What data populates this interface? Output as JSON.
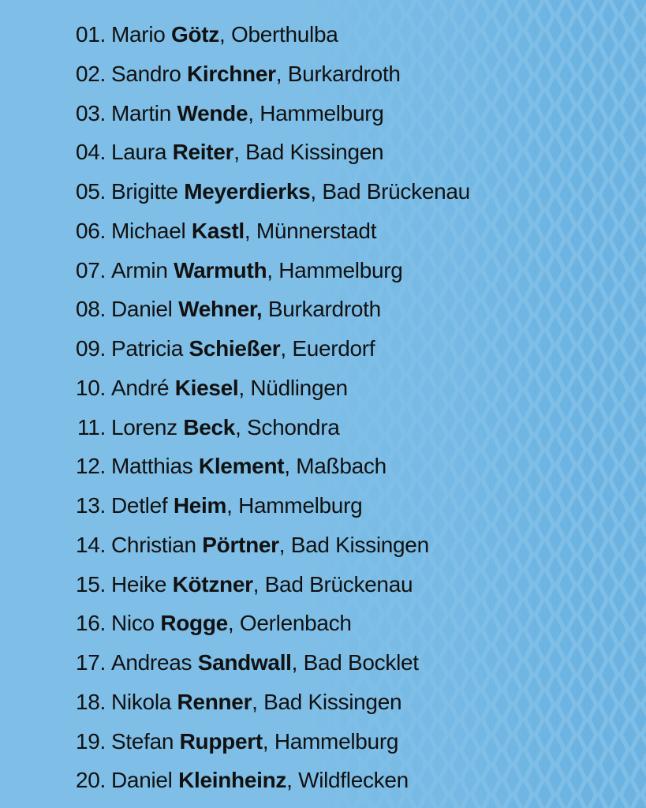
{
  "colors": {
    "background": "#7fbfe7",
    "pattern": "#6cb3e2",
    "text": "#111111"
  },
  "items": [
    {
      "number": "01.",
      "first": "Mario",
      "last": "Götz",
      "place": "Oberthulba"
    },
    {
      "number": "02.",
      "first": "Sandro",
      "last": "Kirchner",
      "place": "Burkardroth"
    },
    {
      "number": "03.",
      "first": "Martin",
      "last": "Wende",
      "place": "Hammelburg"
    },
    {
      "number": "04.",
      "first": "Laura",
      "last": "Reiter",
      "place": "Bad Kissingen"
    },
    {
      "number": "05.",
      "first": "Brigitte",
      "last": "Meyerdierks",
      "place": "Bad Brückenau"
    },
    {
      "number": "06.",
      "first": "Michael",
      "last": "Kastl",
      "place": "Münnerstadt"
    },
    {
      "number": "07.",
      "first": "Armin",
      "last": "Warmuth",
      "place": "Hammelburg"
    },
    {
      "number": "08.",
      "first": "Daniel",
      "last": "Wehner,",
      "place": "Burkardroth",
      "bold_comma": true
    },
    {
      "number": "09.",
      "first": "Patricia",
      "last": "Schießer",
      "place": "Euerdorf"
    },
    {
      "number": "10.",
      "first": "André",
      "last": "Kiesel",
      "place": "Nüdlingen"
    },
    {
      "number": "11.",
      "first": "Lorenz",
      "last": "Beck",
      "place": "Schondra"
    },
    {
      "number": "12.",
      "first": "Matthias",
      "last": "Klement",
      "place": "Maßbach"
    },
    {
      "number": "13.",
      "first": "Detlef",
      "last": "Heim",
      "place": "Hammelburg"
    },
    {
      "number": "14.",
      "first": "Christian",
      "last": "Pörtner",
      "place": "Bad Kissingen"
    },
    {
      "number": "15.",
      "first": "Heike",
      "last": "Kötzner",
      "place": "Bad Brückenau"
    },
    {
      "number": "16.",
      "first": "Nico",
      "last": "Rogge",
      "place": "Oerlenbach"
    },
    {
      "number": "17.",
      "first": "Andreas",
      "last": "Sandwall",
      "place": "Bad Bocklet"
    },
    {
      "number": "18.",
      "first": "Nikola",
      "last": "Renner",
      "place": "Bad Kissingen"
    },
    {
      "number": "19.",
      "first": "Stefan",
      "last": "Ruppert",
      "place": "Hammelburg"
    },
    {
      "number": "20.",
      "first": "Daniel",
      "last": "Kleinheinz",
      "place": "Wildflecken"
    }
  ]
}
